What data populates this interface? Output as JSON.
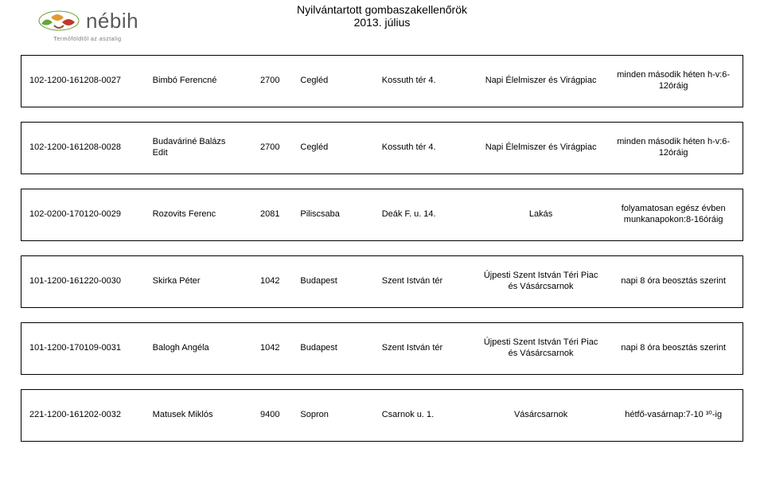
{
  "header": {
    "title_line1": "Nyilvántartott gombaszakellenőrök",
    "title_line2": "2013. július",
    "logo_text": "nébih",
    "logo_sub": "Termőföldtől az asztalig"
  },
  "rows": [
    {
      "id": "102-1200-161208-0027",
      "name": "Bimbó Ferencné",
      "zip": "2700",
      "city": "Cegléd",
      "addr": "Kossuth tér 4.",
      "place": "Napi Élelmiszer és Virágpiac",
      "sched": "minden második héten h-v:6-12óráig"
    },
    {
      "id": "102-1200-161208-0028",
      "name": "Budaváriné Balázs Edit",
      "zip": "2700",
      "city": "Cegléd",
      "addr": "Kossuth tér 4.",
      "place": "Napi Élelmiszer és Virágpiac",
      "sched": "minden második héten h-v:6-12óráig"
    },
    {
      "id": "102-0200-170120-0029",
      "name": "Rozovits Ferenc",
      "zip": "2081",
      "city": "Piliscsaba",
      "addr": "Deák F. u. 14.",
      "place": "Lakás",
      "sched": "folyamatosan egész évben munkanapokon:8-16óráig"
    },
    {
      "id": "101-1200-161220-0030",
      "name": "Skirka Péter",
      "zip": "1042",
      "city": "Budapest",
      "addr": "Szent István tér",
      "place": "Újpesti Szent István Téri Piac és Vásárcsarnok",
      "sched": "napi 8 óra beosztás szerint"
    },
    {
      "id": "101-1200-170109-0031",
      "name": "Balogh Angéla",
      "zip": "1042",
      "city": "Budapest",
      "addr": "Szent István tér",
      "place": "Újpesti Szent István Téri Piac és Vásárcsarnok",
      "sched": "napi 8 óra beosztás szerint"
    },
    {
      "id": "221-1200-161202-0032",
      "name": "Matusek Miklós",
      "zip": "9400",
      "city": "Sopron",
      "addr": "Csarnok u. 1.",
      "place": "Vásárcsarnok",
      "sched": "hétfő-vasárnap:7-10 ³⁰-ig"
    }
  ]
}
